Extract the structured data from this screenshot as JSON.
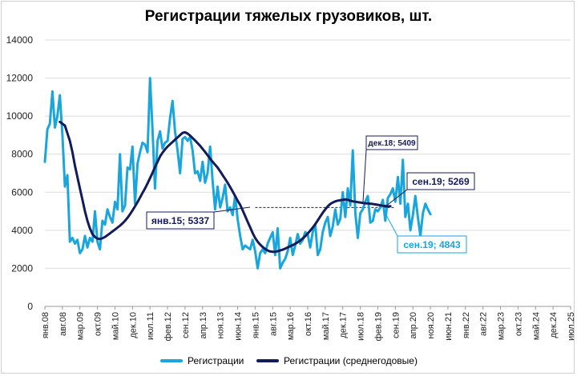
{
  "chart_data": {
    "type": "line",
    "title": "Регистрации тяжелых грузовиков, шт.",
    "ylim": [
      0,
      14000
    ],
    "y_ticks": [
      "0",
      "2000",
      "4000",
      "6000",
      "8000",
      "10000",
      "12000",
      "14000"
    ],
    "x_tick_labels": [
      "янв.08",
      "авг.08",
      "мар.09",
      "окт.09",
      "май.10",
      "дек.10",
      "июл.11",
      "фев.12",
      "сен.12",
      "апр.13",
      "ноя.13",
      "июн.14",
      "янв.15",
      "авг.15",
      "мар.16",
      "окт.16",
      "май.17",
      "дек.17",
      "июл.18",
      "фев.19",
      "сен.19",
      "апр.20",
      "ноя.20",
      "июн.21",
      "янв.22",
      "авг.22",
      "мар.23",
      "окт.23",
      "май.24",
      "дек.24",
      "июл.25"
    ],
    "grid": true,
    "legend_position": "bottom",
    "series": [
      {
        "name": "Регистрации",
        "color": "#1aa6dd",
        "x_start": "янв.08",
        "values": [
          7600,
          9300,
          9600,
          11300,
          9400,
          10000,
          11100,
          9000,
          6300,
          6900,
          3400,
          3600,
          3300,
          3500,
          2800,
          3000,
          3700,
          3100,
          3600,
          3400,
          5000,
          3400,
          3000,
          4500,
          4300,
          5100,
          4700,
          4400,
          5500,
          5100,
          8000,
          5000,
          5300,
          7300,
          7200,
          8400,
          5400,
          7500,
          8100,
          8600,
          8500,
          8100,
          12000,
          9300,
          6200,
          8700,
          9200,
          8300,
          8600,
          8700,
          9900,
          10800,
          9200,
          8200,
          7000,
          8800,
          8900,
          8700,
          8900,
          8200,
          7000,
          7100,
          6600,
          7600,
          6500,
          7000,
          8400,
          6600,
          5100,
          6300,
          5200,
          5700,
          6400,
          5000,
          5200,
          4800,
          5800,
          4600,
          3700,
          3000,
          3200,
          3100,
          3000,
          3500,
          2900,
          2000,
          2800,
          3000,
          2800,
          3300,
          3600,
          3900,
          2700,
          4100,
          2000,
          2300,
          2500,
          2900,
          3600,
          2700,
          3200,
          3800,
          3300,
          3500,
          3900,
          3800,
          3100,
          3900,
          4300,
          2700,
          3000,
          3900,
          4400,
          4700,
          3700,
          4200,
          5100,
          4300,
          4600,
          6000,
          4700,
          6200,
          5300,
          8200,
          4900,
          3600,
          4900,
          5100,
          5500,
          5800,
          4400,
          4500,
          5100,
          5000,
          5200,
          5600,
          4500,
          5700,
          5900,
          6200,
          5500,
          6800,
          5400,
          7700,
          4700,
          5400,
          4000,
          4800,
          5800,
          4700,
          3700,
          4900,
          5400,
          5100,
          4843
        ]
      },
      {
        "name": "Регистрации (среднегодовые)",
        "color": "#141b5a",
        "x_start": "июл.08",
        "values": [
          9700,
          9600,
          9500,
          9100,
          8700,
          8100,
          7400,
          6800,
          6200,
          5600,
          5000,
          4500,
          4100,
          3800,
          3650,
          3560,
          3540,
          3580,
          3650,
          3740,
          3840,
          3940,
          4040,
          4140,
          4240,
          4360,
          4500,
          4660,
          4840,
          5040,
          5260,
          5480,
          5720,
          5960,
          6200,
          6460,
          6740,
          7020,
          7320,
          7600,
          7880,
          8080,
          8250,
          8400,
          8520,
          8640,
          8760,
          8880,
          9000,
          9120,
          9150,
          9080,
          8980,
          8850,
          8720,
          8580,
          8440,
          8280,
          8120,
          7950,
          7760,
          7600,
          7450,
          7300,
          7100,
          6900,
          6700,
          6500,
          6270,
          6040,
          5800,
          5560,
          5337,
          5050,
          4750,
          4450,
          4150,
          3850,
          3600,
          3400,
          3250,
          3120,
          3020,
          2940,
          2890,
          2870,
          2870,
          2900,
          2940,
          2980,
          3040,
          3100,
          3160,
          3220,
          3290,
          3370,
          3460,
          3570,
          3690,
          3830,
          3980,
          4140,
          4320,
          4520,
          4720,
          4920,
          5100,
          5260,
          5380,
          5460,
          5520,
          5560,
          5580,
          5600,
          5620,
          5600,
          5560,
          5520,
          5500,
          5480,
          5460,
          5440,
          5420,
          5409,
          5400,
          5380,
          5360,
          5340,
          5310,
          5290,
          5270,
          5250,
          5269
        ]
      }
    ],
    "reference_line": {
      "value": 5200,
      "style": "dashed",
      "from": "янв.15",
      "to": "сен.19"
    },
    "annotations": [
      {
        "label": "янв.15; 5337",
        "x": "янв.15",
        "y": 5337,
        "series": "Регистрации (среднегодовые)"
      },
      {
        "label": "дек.18; 5409",
        "x": "дек.18",
        "y": 5409,
        "series": "Регистрации (среднегодовые)"
      },
      {
        "label": "сен.19; 5269",
        "x": "сен.19",
        "y": 5269,
        "series": "Регистрации (среднегодовые)"
      },
      {
        "label": "сен.19; 4843",
        "x": "сен.19",
        "y": 4843,
        "series": "Регистрации"
      }
    ]
  }
}
